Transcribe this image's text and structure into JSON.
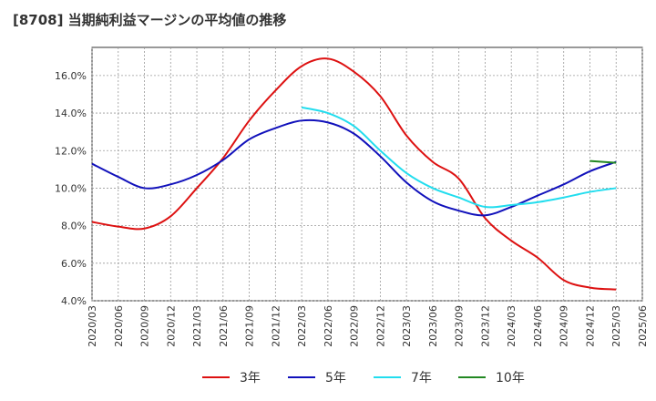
{
  "chart_data": {
    "type": "line",
    "title": "[8708]  当期純利益マージンの平均値の推移",
    "xlabel": "",
    "ylabel": "",
    "ylim": [
      4.0,
      17.5
    ],
    "yticks": [
      "4.0%",
      "6.0%",
      "8.0%",
      "10.0%",
      "12.0%",
      "14.0%",
      "16.0%"
    ],
    "xticks": [
      "2020/03",
      "2020/06",
      "2020/09",
      "2020/12",
      "2021/03",
      "2021/06",
      "2021/09",
      "2021/12",
      "2022/03",
      "2022/06",
      "2022/09",
      "2022/12",
      "2023/03",
      "2023/06",
      "2023/09",
      "2023/12",
      "2024/03",
      "2024/06",
      "2024/09",
      "2024/12",
      "2025/03",
      "2025/06"
    ],
    "grid": true,
    "legend_position": "bottom",
    "series": [
      {
        "name": "3年",
        "color": "#dd1111",
        "x": [
          "2020/03",
          "2020/06",
          "2020/09",
          "2020/12",
          "2021/03",
          "2021/06",
          "2021/09",
          "2021/12",
          "2022/03",
          "2022/06",
          "2022/09",
          "2022/12",
          "2023/03",
          "2023/06",
          "2023/09",
          "2023/12",
          "2024/03",
          "2024/06",
          "2024/09",
          "2024/12",
          "2025/03"
        ],
        "values": [
          8.2,
          7.95,
          7.85,
          8.5,
          10.0,
          11.6,
          13.6,
          15.2,
          16.5,
          16.9,
          16.2,
          14.9,
          12.8,
          11.4,
          10.5,
          8.4,
          7.2,
          6.3,
          5.1,
          4.7,
          4.6
        ]
      },
      {
        "name": "5年",
        "color": "#1111bb",
        "x": [
          "2020/03",
          "2020/06",
          "2020/09",
          "2020/12",
          "2021/03",
          "2021/06",
          "2021/09",
          "2021/12",
          "2022/03",
          "2022/06",
          "2022/09",
          "2022/12",
          "2023/03",
          "2023/06",
          "2023/09",
          "2023/12",
          "2024/03",
          "2024/06",
          "2024/09",
          "2024/12",
          "2025/03"
        ],
        "values": [
          11.3,
          10.6,
          10.0,
          10.2,
          10.7,
          11.5,
          12.6,
          13.2,
          13.6,
          13.5,
          12.9,
          11.7,
          10.3,
          9.3,
          8.8,
          8.55,
          9.0,
          9.6,
          10.2,
          10.9,
          11.4
        ]
      },
      {
        "name": "7年",
        "color": "#22ddee",
        "x": [
          "2022/03",
          "2022/06",
          "2022/09",
          "2022/12",
          "2023/03",
          "2023/06",
          "2023/09",
          "2023/12",
          "2024/03",
          "2024/06",
          "2024/09",
          "2024/12",
          "2025/03"
        ],
        "values": [
          14.3,
          14.0,
          13.3,
          12.0,
          10.8,
          10.0,
          9.5,
          9.0,
          9.1,
          9.25,
          9.5,
          9.8,
          10.0
        ]
      },
      {
        "name": "10年",
        "color": "#228822",
        "x": [
          "2024/12",
          "2025/03"
        ],
        "values": [
          11.45,
          11.35
        ]
      }
    ]
  }
}
